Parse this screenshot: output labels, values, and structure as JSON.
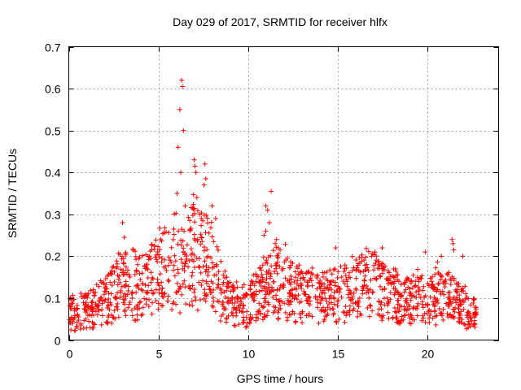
{
  "chart_data": {
    "type": "scatter",
    "title": "Day 029 of 2017, SRMTID for receiver hlfx",
    "xlabel": "GPS time / hours",
    "ylabel": "SRMTID / TECUs",
    "xlim": [
      0,
      24
    ],
    "ylim": [
      0,
      0.7
    ],
    "xticks": [
      0,
      5,
      10,
      15,
      20
    ],
    "xtick_labels": [
      "0",
      "5",
      "10",
      "15",
      "20"
    ],
    "yticks": [
      0,
      0.1,
      0.2,
      0.3,
      0.4,
      0.5,
      0.6,
      0.7
    ],
    "ytick_labels": [
      "0",
      "0.1",
      "0.2",
      "0.3",
      "0.4",
      "0.5",
      "0.6",
      "0.7"
    ],
    "grid": true,
    "marker": "plus",
    "color": "#ff0000",
    "data_range_hours": [
      0,
      22.75
    ],
    "level_profile": [
      {
        "x": 0,
        "y": 0.06
      },
      {
        "x": 1,
        "y": 0.065
      },
      {
        "x": 2,
        "y": 0.085
      },
      {
        "x": 3,
        "y": 0.13
      },
      {
        "x": 4,
        "y": 0.13
      },
      {
        "x": 5,
        "y": 0.15
      },
      {
        "x": 6,
        "y": 0.17
      },
      {
        "x": 7,
        "y": 0.2
      },
      {
        "x": 8,
        "y": 0.16
      },
      {
        "x": 9,
        "y": 0.08
      },
      {
        "x": 10,
        "y": 0.075
      },
      {
        "x": 11,
        "y": 0.12
      },
      {
        "x": 12,
        "y": 0.13
      },
      {
        "x": 13,
        "y": 0.1
      },
      {
        "x": 14,
        "y": 0.1
      },
      {
        "x": 15,
        "y": 0.1
      },
      {
        "x": 16,
        "y": 0.12
      },
      {
        "x": 17,
        "y": 0.12
      },
      {
        "x": 18,
        "y": 0.1
      },
      {
        "x": 19,
        "y": 0.09
      },
      {
        "x": 20,
        "y": 0.1
      },
      {
        "x": 21,
        "y": 0.1
      },
      {
        "x": 22,
        "y": 0.08
      },
      {
        "x": 22.75,
        "y": 0.06
      }
    ],
    "notable_points": [
      {
        "x": 3.0,
        "y": 0.28
      },
      {
        "x": 3.1,
        "y": 0.245
      },
      {
        "x": 6.1,
        "y": 0.46
      },
      {
        "x": 6.2,
        "y": 0.55
      },
      {
        "x": 6.3,
        "y": 0.62
      },
      {
        "x": 6.35,
        "y": 0.605
      },
      {
        "x": 6.4,
        "y": 0.5
      },
      {
        "x": 6.25,
        "y": 0.4
      },
      {
        "x": 6.05,
        "y": 0.35
      },
      {
        "x": 6.5,
        "y": 0.32
      },
      {
        "x": 7.0,
        "y": 0.43
      },
      {
        "x": 7.05,
        "y": 0.415
      },
      {
        "x": 7.1,
        "y": 0.4
      },
      {
        "x": 7.15,
        "y": 0.34
      },
      {
        "x": 7.6,
        "y": 0.42
      },
      {
        "x": 7.65,
        "y": 0.385
      },
      {
        "x": 7.55,
        "y": 0.37
      },
      {
        "x": 8.0,
        "y": 0.32
      },
      {
        "x": 8.2,
        "y": 0.29
      },
      {
        "x": 7.3,
        "y": 0.3
      },
      {
        "x": 7.4,
        "y": 0.29
      },
      {
        "x": 11.0,
        "y": 0.32
      },
      {
        "x": 11.1,
        "y": 0.31
      },
      {
        "x": 11.3,
        "y": 0.355
      },
      {
        "x": 11.2,
        "y": 0.28
      },
      {
        "x": 11.0,
        "y": 0.26
      },
      {
        "x": 10.9,
        "y": 0.25
      },
      {
        "x": 11.6,
        "y": 0.24
      },
      {
        "x": 11.7,
        "y": 0.22
      },
      {
        "x": 11.8,
        "y": 0.215
      },
      {
        "x": 14.9,
        "y": 0.22
      },
      {
        "x": 16.9,
        "y": 0.2
      },
      {
        "x": 17.1,
        "y": 0.21
      },
      {
        "x": 17.5,
        "y": 0.22
      },
      {
        "x": 21.4,
        "y": 0.24
      },
      {
        "x": 21.45,
        "y": 0.23
      },
      {
        "x": 21.5,
        "y": 0.215
      },
      {
        "x": 22.0,
        "y": 0.2
      },
      {
        "x": 20.8,
        "y": 0.2
      },
      {
        "x": 19.9,
        "y": 0.21
      }
    ]
  }
}
